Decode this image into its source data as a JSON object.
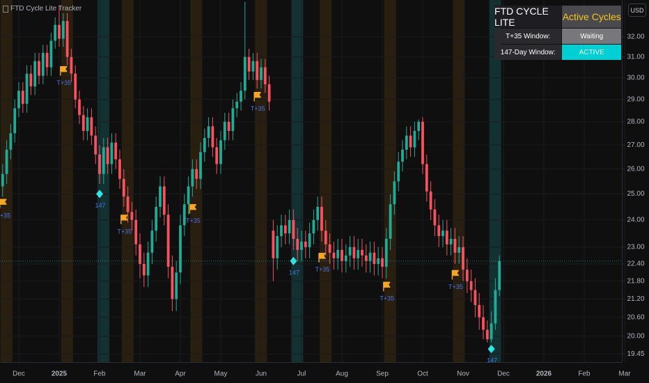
{
  "chart_data": {
    "type": "candlestick",
    "title": "FTD Cycle Lite Tracker",
    "currency": "USD",
    "log_scale": true,
    "grid": true,
    "up_color": "#22ab94",
    "down_color": "#f7525f",
    "ylim": [
      19.2,
      33.9
    ],
    "yticks": [
      19.45,
      {
        "value": 20,
        "label": "20.00"
      },
      {
        "value": 20.6,
        "label": "20.60"
      },
      {
        "value": 21.2,
        "label": "21.20"
      },
      {
        "value": 21.8,
        "label": "21.80"
      },
      {
        "value": 22.4,
        "label": "22.40"
      },
      {
        "value": 23,
        "label": "23.00"
      },
      {
        "value": 24,
        "label": "24.00"
      },
      {
        "value": 25,
        "label": "25.00"
      },
      {
        "value": 26,
        "label": "26.00"
      },
      {
        "value": 27,
        "label": "27.00"
      },
      {
        "value": 28,
        "label": "28.00"
      },
      {
        "value": 29,
        "label": "29.00"
      },
      {
        "value": 30,
        "label": "30.00"
      },
      {
        "value": 31,
        "label": "31.00"
      },
      {
        "value": 32,
        "label": "32.00"
      }
    ],
    "categories": [
      null,
      null,
      null,
      null,
      "Dec",
      null,
      null,
      null,
      null,
      null,
      null,
      null,
      null,
      null,
      "2025",
      null,
      null,
      null,
      null,
      null,
      null,
      null,
      null,
      null,
      "Feb",
      null,
      null,
      null,
      null,
      null,
      null,
      null,
      null,
      null,
      "Mar",
      null,
      null,
      null,
      null,
      null,
      null,
      null,
      null,
      null,
      "Apr",
      null,
      null,
      null,
      null,
      null,
      null,
      null,
      null,
      null,
      "May",
      null,
      null,
      null,
      null,
      null,
      null,
      null,
      null,
      null,
      "Jun",
      null,
      null,
      null,
      null,
      null,
      null,
      null,
      null,
      null,
      "Jul",
      null,
      null,
      null,
      null,
      null,
      null,
      null,
      null,
      null,
      "Aug",
      null,
      null,
      null,
      null,
      null,
      null,
      null,
      null,
      null,
      "Sep",
      null,
      null,
      null,
      null,
      null,
      null,
      null,
      null,
      null,
      "Oct",
      null,
      null,
      null,
      null,
      null,
      null,
      null,
      null,
      null,
      "Nov",
      null,
      null,
      null,
      null,
      null,
      null,
      null,
      null,
      null,
      "Dec",
      null,
      null,
      null,
      null,
      null,
      null,
      null,
      null,
      null,
      "2026",
      null,
      null,
      null,
      null,
      null,
      null,
      null,
      null,
      null,
      "Feb",
      null,
      null,
      null,
      null,
      null,
      null,
      null,
      null,
      null,
      "Mar"
    ],
    "open": [
      25.3,
      25.8,
      26.8,
      27.5,
      28.6,
      29.4,
      28.8,
      30.2,
      29.6,
      30.8,
      30.1,
      31.2,
      30.5,
      31.8,
      32.6,
      31.9,
      32.8,
      31.0,
      30.2,
      29.0,
      28.3,
      27.6,
      28.2,
      27.4,
      26.6,
      25.8,
      26.9,
      26.2,
      27.1,
      26.4,
      25.6,
      24.9,
      24.3,
      24.0,
      23.1,
      22.4,
      22.0,
      22.8,
      23.6,
      24.5,
      25.3,
      24.2,
      22.3,
      21.2,
      22.1,
      23.8,
      24.6,
      25.3,
      26.0,
      25.6,
      26.7,
      27.3,
      27.8,
      26.9,
      26.2,
      27.2,
      28.0,
      27.6,
      28.6,
      28.9,
      29.4,
      31.0,
      30.3,
      30.8,
      29.9,
      30.5,
      29.7,
      23.6,
      22.6,
      23.4,
      23.8,
      23.5,
      24.0,
      23.3,
      22.9,
      23.2,
      23.0,
      23.5,
      24.0,
      24.5,
      23.6,
      23.1,
      22.8,
      22.6,
      22.9,
      22.5,
      22.7,
      23.0,
      22.6,
      22.9,
      22.7,
      22.5,
      22.8,
      22.4,
      22.6,
      22.3,
      23.3,
      24.6,
      25.5,
      26.3,
      26.8,
      27.4,
      26.9,
      27.6,
      28.0,
      26.2,
      25.1,
      24.4,
      23.8,
      23.4,
      23.6,
      23.1,
      23.3,
      22.8,
      23.0,
      22.2,
      21.8,
      21.5,
      21.0,
      20.6,
      20.2,
      19.9,
      20.4,
      21.5,
      null,
      null,
      null,
      null,
      null,
      null,
      null,
      null,
      null,
      null,
      null,
      null,
      null,
      null,
      null,
      null,
      null,
      null,
      null,
      null,
      null,
      null,
      null,
      null,
      null,
      null,
      null,
      null,
      null,
      null,
      null
    ],
    "high": [
      26.2,
      27.2,
      27.9,
      29.0,
      29.8,
      29.8,
      30.6,
      30.6,
      31.2,
      31.2,
      31.6,
      31.6,
      32.2,
      33.0,
      33.6,
      33.2,
      33.2,
      31.4,
      30.6,
      29.4,
      28.7,
      28.6,
      28.6,
      27.8,
      27.0,
      27.3,
      27.3,
      27.5,
      27.5,
      26.8,
      26.0,
      25.3,
      24.7,
      24.4,
      23.5,
      22.8,
      23.2,
      24.0,
      24.9,
      25.7,
      25.7,
      24.6,
      22.7,
      22.5,
      24.2,
      25.0,
      25.7,
      26.4,
      26.4,
      27.1,
      27.7,
      28.2,
      28.2,
      27.3,
      27.6,
      28.4,
      28.4,
      29.0,
      29.3,
      29.8,
      33.8,
      31.4,
      31.2,
      31.2,
      30.9,
      30.9,
      30.1,
      24.0,
      23.8,
      24.2,
      24.2,
      24.4,
      24.4,
      23.7,
      23.6,
      23.6,
      23.9,
      24.4,
      24.9,
      24.9,
      24.0,
      23.5,
      23.2,
      23.3,
      23.3,
      23.1,
      23.4,
      23.4,
      23.3,
      23.3,
      23.1,
      23.2,
      23.2,
      23.0,
      23.0,
      23.7,
      25.0,
      25.9,
      26.7,
      27.2,
      27.8,
      27.8,
      28.0,
      28.1,
      28.2,
      26.6,
      25.5,
      24.8,
      24.2,
      24.0,
      24.0,
      23.7,
      23.7,
      23.4,
      23.4,
      22.6,
      22.2,
      21.9,
      21.4,
      21.0,
      20.5,
      20.8,
      21.9,
      22.7,
      null,
      null,
      null,
      null,
      null,
      null,
      null,
      null,
      null,
      null,
      null,
      null,
      null,
      null,
      null,
      null,
      null,
      null,
      null,
      null,
      null,
      null,
      null,
      null,
      null,
      null,
      null,
      null,
      null,
      null,
      null
    ],
    "low": [
      24.9,
      25.4,
      26.4,
      27.1,
      28.2,
      28.4,
      28.4,
      29.2,
      29.2,
      29.7,
      29.7,
      30.1,
      30.1,
      31.4,
      31.5,
      31.5,
      30.6,
      29.8,
      28.6,
      27.9,
      27.2,
      27.2,
      27.0,
      26.2,
      25.4,
      25.4,
      25.8,
      25.8,
      26.0,
      25.2,
      24.5,
      23.9,
      23.6,
      22.7,
      21.9,
      21.6,
      21.6,
      22.4,
      23.2,
      24.1,
      23.8,
      21.9,
      20.8,
      20.8,
      21.7,
      23.4,
      24.2,
      24.9,
      25.2,
      25.2,
      26.3,
      26.9,
      26.5,
      25.8,
      25.8,
      26.8,
      27.2,
      27.2,
      28.2,
      28.5,
      29.0,
      29.9,
      29.9,
      29.5,
      29.5,
      29.3,
      28.5,
      21.8,
      22.2,
      23.0,
      23.1,
      23.1,
      22.9,
      22.5,
      22.5,
      22.6,
      22.6,
      23.1,
      23.6,
      23.2,
      22.7,
      22.4,
      22.2,
      22.2,
      22.1,
      22.1,
      22.3,
      22.2,
      22.2,
      22.3,
      22.1,
      22.1,
      22.0,
      22.0,
      21.9,
      21.9,
      22.9,
      24.2,
      25.1,
      25.9,
      26.4,
      26.5,
      26.5,
      27.2,
      25.8,
      24.7,
      24.0,
      23.4,
      23.0,
      23.0,
      22.7,
      22.7,
      22.4,
      22.4,
      21.8,
      21.4,
      21.1,
      20.6,
      20.2,
      19.9,
      19.8,
      19.8,
      20.2,
      21.3,
      null,
      null,
      null,
      null,
      null,
      null,
      null,
      null,
      null,
      null,
      null,
      null,
      null,
      null,
      null,
      null,
      null,
      null,
      null,
      null,
      null,
      null,
      null,
      null,
      null,
      null,
      null,
      null,
      null,
      null,
      null
    ],
    "close": [
      25.8,
      26.8,
      27.5,
      28.6,
      29.4,
      28.8,
      30.2,
      29.6,
      30.8,
      30.1,
      31.2,
      30.5,
      31.8,
      32.6,
      31.9,
      32.8,
      31.0,
      30.2,
      29.0,
      28.3,
      27.6,
      28.2,
      27.4,
      26.6,
      25.8,
      26.9,
      26.2,
      27.1,
      26.4,
      25.6,
      24.9,
      24.3,
      24.0,
      23.1,
      22.4,
      22.0,
      22.8,
      23.6,
      24.5,
      25.3,
      24.2,
      22.3,
      21.2,
      22.1,
      23.8,
      24.6,
      25.3,
      26.0,
      25.6,
      26.7,
      27.3,
      27.8,
      26.9,
      26.2,
      27.2,
      28.0,
      27.6,
      28.6,
      28.9,
      29.4,
      31.0,
      30.3,
      30.8,
      29.9,
      30.5,
      29.7,
      28.9,
      22.6,
      23.4,
      23.8,
      23.5,
      24.0,
      23.3,
      22.9,
      23.2,
      23.0,
      23.5,
      24.0,
      24.5,
      23.6,
      23.1,
      22.8,
      22.6,
      22.9,
      22.5,
      22.7,
      23.0,
      22.6,
      22.9,
      22.7,
      22.5,
      22.8,
      22.4,
      22.6,
      22.3,
      23.3,
      24.6,
      25.5,
      26.3,
      26.8,
      27.4,
      26.9,
      27.6,
      28.0,
      26.2,
      25.1,
      24.4,
      23.8,
      23.4,
      23.6,
      23.1,
      23.3,
      22.8,
      23.0,
      22.2,
      21.8,
      21.5,
      21.0,
      20.6,
      20.2,
      19.9,
      20.4,
      21.5,
      22.5,
      null,
      null,
      null,
      null,
      null,
      null,
      null,
      null,
      null,
      null,
      null,
      null,
      null,
      null,
      null,
      null,
      null,
      null,
      null,
      null,
      null,
      null,
      null,
      null,
      null,
      null,
      null,
      null,
      null,
      null,
      null
    ],
    "series": [
      {
        "name": "T+35",
        "marker": "flag",
        "color": "#f5a623",
        "values": [
          24.6,
          null,
          null,
          null,
          null,
          null,
          null,
          null,
          null,
          null,
          null,
          null,
          null,
          null,
          null,
          30.3,
          null,
          null,
          null,
          null,
          null,
          null,
          null,
          null,
          null,
          null,
          null,
          null,
          null,
          null,
          24.0,
          null,
          null,
          null,
          null,
          null,
          null,
          null,
          null,
          null,
          null,
          null,
          null,
          null,
          null,
          null,
          null,
          24.4,
          null,
          null,
          null,
          null,
          null,
          null,
          null,
          null,
          null,
          null,
          null,
          null,
          null,
          null,
          null,
          29.1,
          null,
          null,
          null,
          null,
          null,
          null,
          null,
          null,
          null,
          null,
          null,
          null,
          null,
          null,
          null,
          22.6,
          null,
          null,
          null,
          null,
          null,
          null,
          null,
          null,
          null,
          null,
          null,
          null,
          null,
          null,
          null,
          21.6,
          null,
          null,
          null,
          null,
          null,
          null,
          null,
          null,
          null,
          null,
          null,
          null,
          null,
          null,
          null,
          null,
          22.0,
          null,
          null,
          null,
          null,
          null,
          null,
          null,
          null,
          null,
          null,
          null,
          null,
          null,
          null,
          null,
          null,
          null,
          null,
          null,
          null,
          null,
          null,
          null,
          null,
          null,
          null,
          null,
          null,
          null,
          null,
          null,
          null,
          null,
          null,
          null,
          null,
          null,
          null,
          null,
          null,
          null,
          null
        ]
      },
      {
        "name": "147",
        "marker": "diamond",
        "color": "#2ee6e6",
        "values": [
          null,
          null,
          null,
          null,
          null,
          null,
          null,
          null,
          null,
          null,
          null,
          null,
          null,
          null,
          null,
          null,
          null,
          null,
          null,
          null,
          null,
          null,
          null,
          null,
          25.0,
          null,
          null,
          null,
          null,
          null,
          null,
          null,
          null,
          null,
          null,
          null,
          null,
          null,
          null,
          null,
          null,
          null,
          null,
          null,
          null,
          null,
          null,
          null,
          null,
          null,
          null,
          null,
          null,
          null,
          null,
          null,
          null,
          null,
          null,
          null,
          null,
          null,
          null,
          null,
          null,
          null,
          null,
          null,
          null,
          null,
          null,
          null,
          22.5,
          null,
          null,
          null,
          null,
          null,
          null,
          null,
          null,
          null,
          null,
          null,
          null,
          null,
          null,
          null,
          null,
          null,
          null,
          null,
          null,
          null,
          null,
          null,
          null,
          null,
          null,
          null,
          null,
          null,
          null,
          null,
          null,
          null,
          null,
          null,
          null,
          null,
          null,
          null,
          null,
          null,
          null,
          null,
          null,
          null,
          null,
          null,
          null,
          19.6,
          null,
          null,
          null,
          null,
          null,
          null,
          null,
          null,
          null,
          null,
          null,
          null,
          null,
          null,
          null,
          null,
          null,
          null,
          null,
          null,
          null,
          null,
          null,
          null,
          null,
          null,
          null,
          null,
          null,
          null,
          null,
          null,
          null
        ]
      }
    ]
  },
  "table": {
    "title": "FTD CYCLE LITE",
    "header": "Active Cycles",
    "rows": [
      [
        "T+35 Window:",
        "Waiting"
      ],
      [
        "147-Day Window:",
        "ACTIVE"
      ]
    ]
  }
}
